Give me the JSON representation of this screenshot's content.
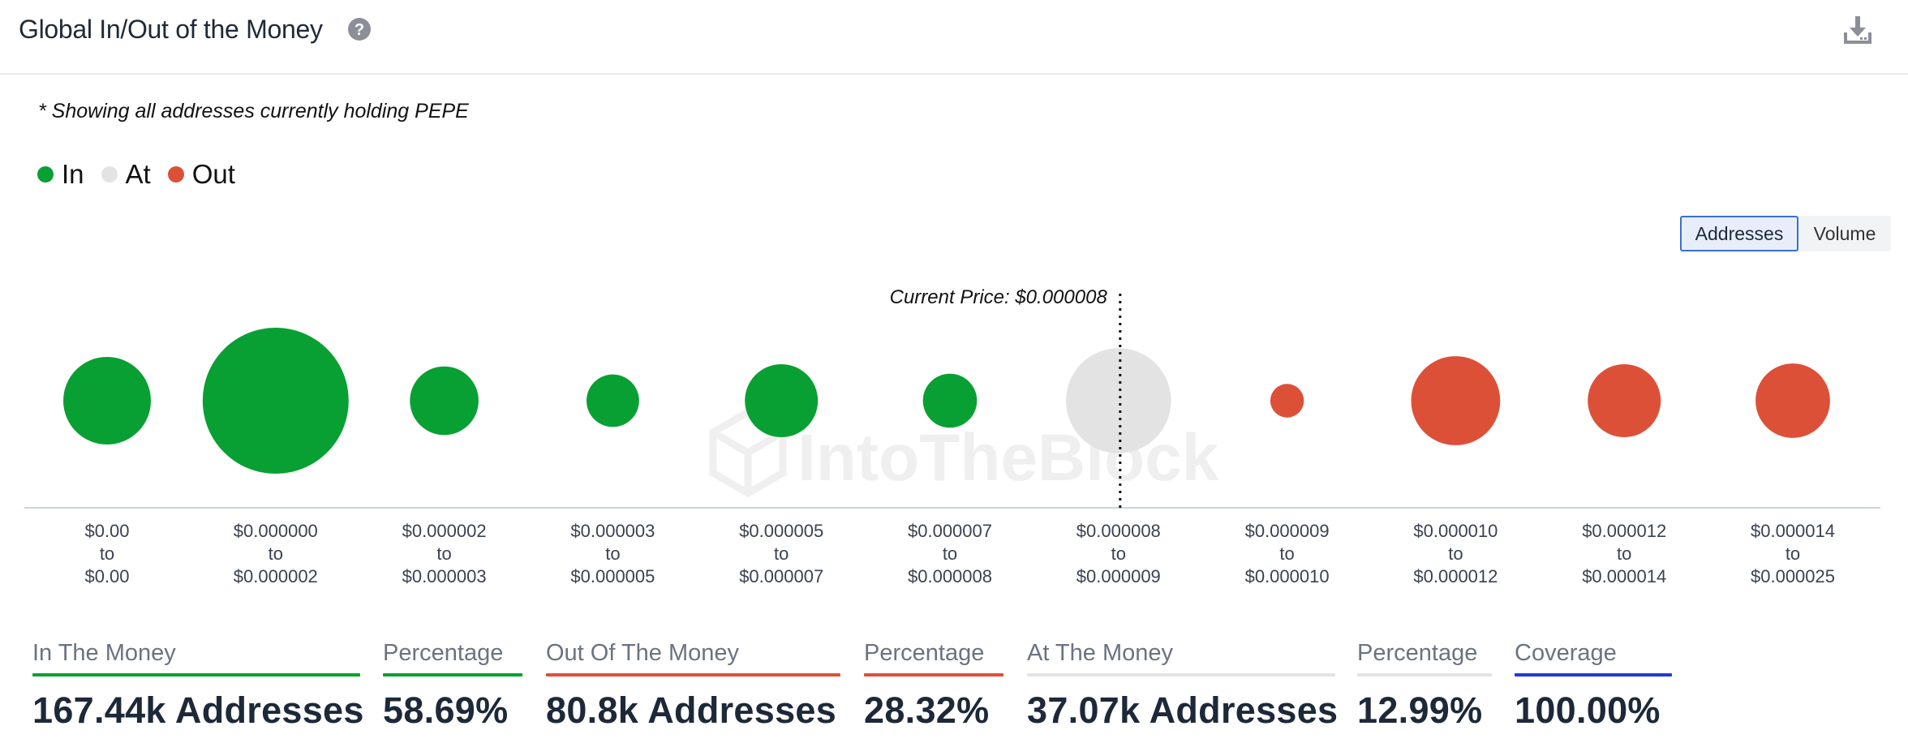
{
  "header": {
    "title": "Global In/Out of the Money"
  },
  "note": "* Showing all addresses currently holding PEPE",
  "legend": [
    {
      "label": "In",
      "color": "#08a032"
    },
    {
      "label": "At",
      "color": "#e3e3e3"
    },
    {
      "label": "Out",
      "color": "#dd5038"
    }
  ],
  "toggle": {
    "addresses_label": "Addresses",
    "volume_label": "Volume",
    "active": "Addresses"
  },
  "watermark": "IntoTheBlock",
  "chart_data": {
    "type": "bubble",
    "current_price_label": "Current Price: $0.000008",
    "current_price_index": 6,
    "colors": {
      "in": "#08a032",
      "at": "#e3e3e3",
      "out": "#dd5038"
    },
    "buckets": [
      {
        "from": "$0.00",
        "to": "$0.00",
        "status": "in",
        "relative_size": 0.6
      },
      {
        "from": "$0.000000",
        "to": "$0.000002",
        "status": "in",
        "relative_size": 1.0
      },
      {
        "from": "$0.000002",
        "to": "$0.000003",
        "status": "in",
        "relative_size": 0.47
      },
      {
        "from": "$0.000003",
        "to": "$0.000005",
        "status": "in",
        "relative_size": 0.36
      },
      {
        "from": "$0.000005",
        "to": "$0.000007",
        "status": "in",
        "relative_size": 0.5
      },
      {
        "from": "$0.000007",
        "to": "$0.000008",
        "status": "in",
        "relative_size": 0.37
      },
      {
        "from": "$0.000008",
        "to": "$0.000009",
        "status": "at",
        "relative_size": 0.72
      },
      {
        "from": "$0.000009",
        "to": "$0.000010",
        "status": "out",
        "relative_size": 0.23
      },
      {
        "from": "$0.000010",
        "to": "$0.000012",
        "status": "out",
        "relative_size": 0.61
      },
      {
        "from": "$0.000012",
        "to": "$0.000014",
        "status": "out",
        "relative_size": 0.5
      },
      {
        "from": "$0.000014",
        "to": "$0.000025",
        "status": "out",
        "relative_size": 0.51
      }
    ],
    "range_connector": "to"
  },
  "stats": [
    {
      "label": "In The Money",
      "value": "167.44k Addresses",
      "line_color": "#08a032"
    },
    {
      "label": "Percentage",
      "value": "58.69%",
      "line_color": "#08a032"
    },
    {
      "label": "Out Of The Money",
      "value": "80.8k Addresses",
      "line_color": "#dd5038"
    },
    {
      "label": "Percentage",
      "value": "28.32%",
      "line_color": "#dd5038"
    },
    {
      "label": "At The Money",
      "value": "37.07k Addresses",
      "line_color": "#e3e3e3"
    },
    {
      "label": "Percentage",
      "value": "12.99%",
      "line_color": "#e3e3e3"
    },
    {
      "label": "Coverage",
      "value": "100.00%",
      "line_color": "#1f3bd6"
    }
  ]
}
